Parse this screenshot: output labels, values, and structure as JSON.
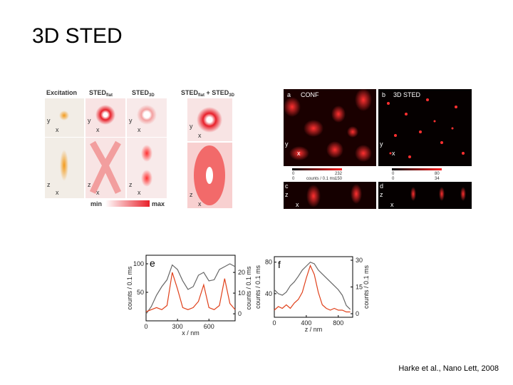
{
  "title": "3D STED",
  "citation": "Harke et al., Nano Lett, 2008",
  "psf_figure": {
    "headers": [
      {
        "base": "Excitation"
      },
      {
        "base": "STED",
        "sub": "flat"
      },
      {
        "base": "STED",
        "sub": "3D"
      }
    ],
    "combined": {
      "base1": "STED",
      "sub1": "flat",
      "plus": " + ",
      "base2": "STED",
      "sub2": "3D"
    },
    "axis_labels": {
      "y": "y",
      "x": "x",
      "z": "z"
    },
    "colorbar": {
      "min": "min",
      "max": "max"
    }
  },
  "images": {
    "a": {
      "letter": "a",
      "label": "CONF",
      "scale_min": "0",
      "scale_max": "232",
      "scale_min2": "0",
      "scale_max2": "150",
      "unit": "counts / 0.1 ms"
    },
    "b": {
      "letter": "b",
      "label": "3D STED",
      "scale_min": "0",
      "scale_max": "80",
      "scale_min2": "0",
      "scale_max2": "34"
    },
    "c": {
      "letter": "c"
    },
    "d": {
      "letter": "d"
    }
  },
  "chart_data": [
    {
      "type": "line",
      "panel": "e",
      "xlabel": "x / nm",
      "ylabel": "counts / 0.1 ms",
      "y2label": "counts / 0.1 ms",
      "x": [
        0,
        50,
        100,
        150,
        200,
        250,
        300,
        350,
        400,
        450,
        500,
        550,
        600,
        650,
        700,
        750,
        800,
        850
      ],
      "xlim": [
        0,
        850
      ],
      "xticks": [
        0,
        300,
        600
      ],
      "ylim": [
        0,
        115
      ],
      "yticks": [
        50,
        100
      ],
      "y2lim": [
        -3.4,
        28.3
      ],
      "y2ticks": [
        0,
        10,
        20
      ],
      "series": [
        {
          "color": "#666666",
          "values": [
            12,
            25,
            45,
            60,
            72,
            98,
            90,
            70,
            55,
            60,
            80,
            85,
            70,
            72,
            90,
            95,
            100,
            95
          ]
        },
        {
          "color": "#e0401a",
          "axis": "y2",
          "values": [
            1,
            2,
            3,
            2,
            4,
            20,
            12,
            3,
            2,
            3,
            6,
            14,
            3,
            2,
            4,
            17,
            5,
            2
          ]
        }
      ]
    },
    {
      "type": "line",
      "panel": "f",
      "xlabel": "z / nm",
      "ylabel": "counts / 0.1 ms",
      "y2label": "counts / 0.1 ms",
      "x": [
        0,
        50,
        100,
        150,
        200,
        250,
        300,
        350,
        400,
        450,
        500,
        550,
        600,
        650,
        700,
        750,
        800,
        850,
        900,
        950
      ],
      "xlim": [
        0,
        980
      ],
      "xticks": [
        0,
        400,
        800
      ],
      "ylim": [
        10,
        87
      ],
      "yticks": [
        40,
        80
      ],
      "y2lim": [
        -2,
        32
      ],
      "y2ticks": [
        0,
        15,
        30
      ],
      "series": [
        {
          "color": "#666666",
          "values": [
            45,
            40,
            38,
            42,
            50,
            55,
            62,
            70,
            75,
            80,
            78,
            70,
            65,
            60,
            55,
            50,
            45,
            38,
            25,
            20
          ]
        },
        {
          "color": "#e0401a",
          "axis": "y2",
          "values": [
            2,
            4,
            3,
            5,
            3,
            6,
            8,
            12,
            20,
            27,
            22,
            12,
            5,
            3,
            2,
            3,
            2,
            2,
            1,
            1
          ]
        }
      ]
    }
  ]
}
